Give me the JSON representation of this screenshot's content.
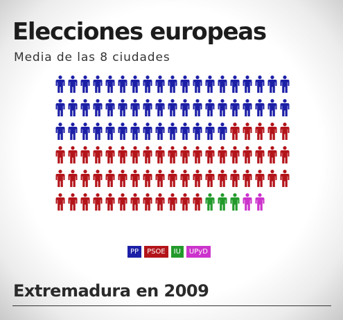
{
  "header": {
    "title": "Elecciones europeas",
    "subtitle": "Media de las 8 ciudades"
  },
  "chart_data": {
    "type": "pictogram",
    "unit": "person-icon",
    "columns": 19,
    "series": [
      {
        "name": "PP",
        "count": 52,
        "color": "#1c1fa6"
      },
      {
        "name": "PSOE",
        "count": 55,
        "color": "#b3141a"
      },
      {
        "name": "IU",
        "count": 3,
        "color": "#229a2b"
      },
      {
        "name": "UPyD",
        "count": 2,
        "color": "#cc33cc"
      }
    ],
    "total": 112
  },
  "legend": [
    {
      "label": "PP",
      "color": "#1c1fa6"
    },
    {
      "label": "PSOE",
      "color": "#b3141a"
    },
    {
      "label": "IU",
      "color": "#229a2b"
    },
    {
      "label": "UPyD",
      "color": "#cc33cc"
    }
  ],
  "section": {
    "title": "Extremadura en 2009"
  }
}
